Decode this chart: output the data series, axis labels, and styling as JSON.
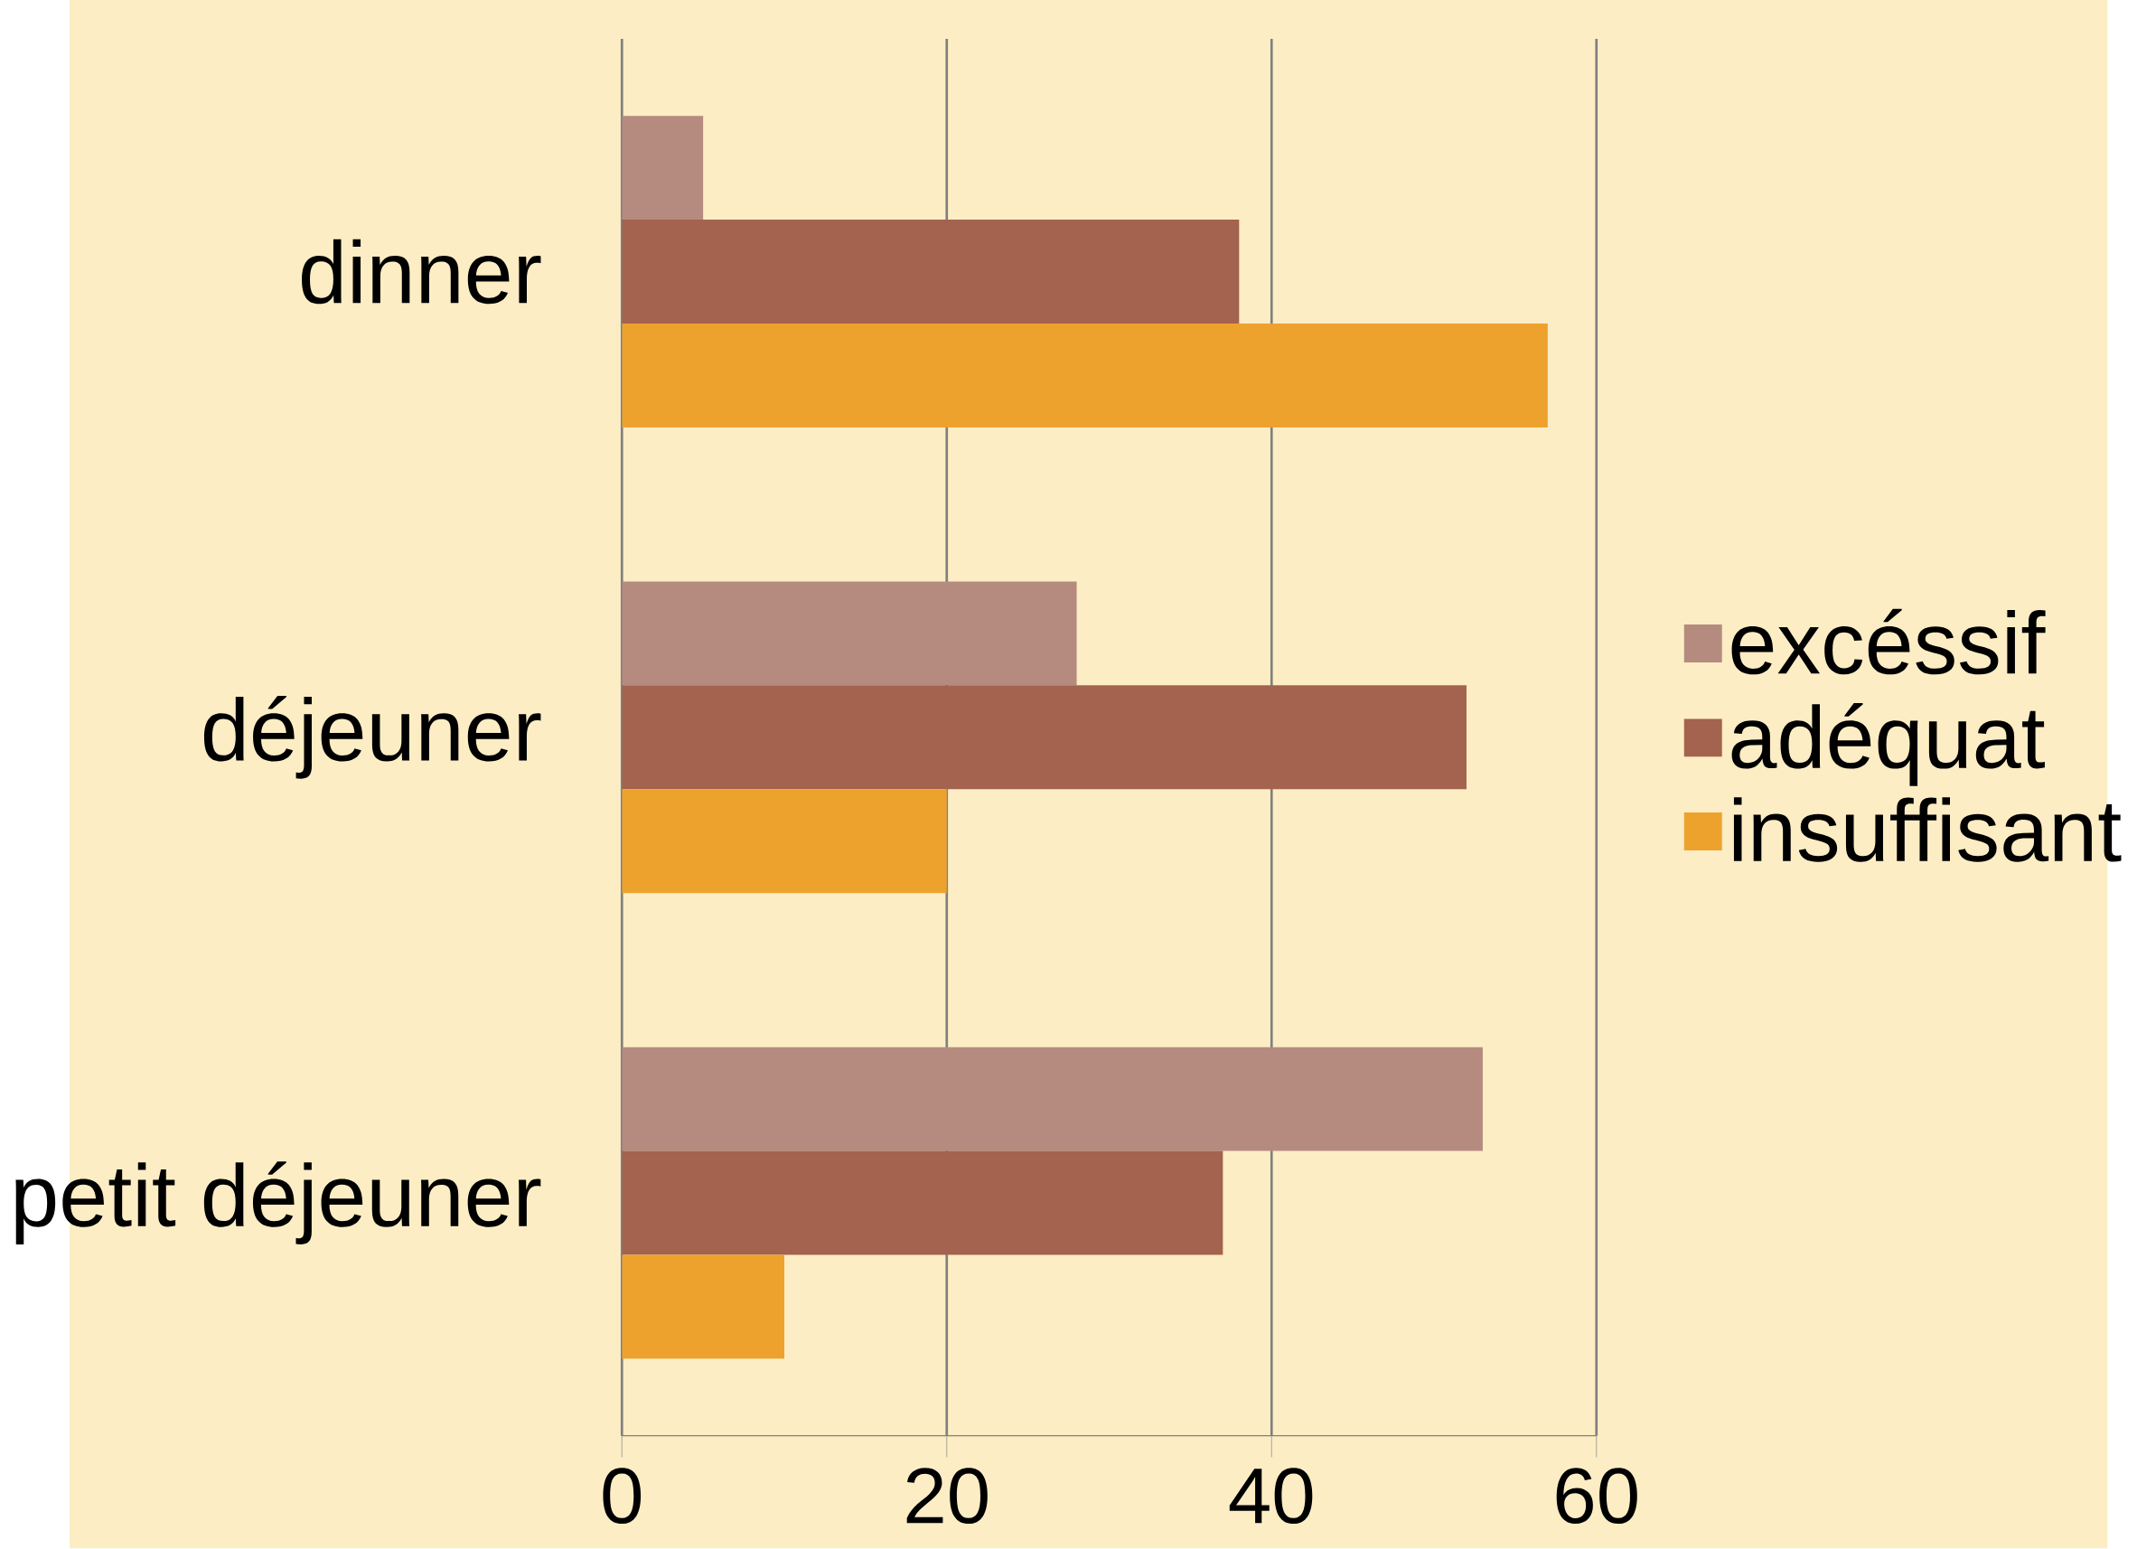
{
  "chart_data": {
    "type": "bar",
    "orientation": "horizontal",
    "categories": [
      "dinner",
      "déjeuner",
      "petit déjeuner"
    ],
    "series": [
      {
        "name": "excéssif",
        "color": "#b58b80",
        "values": [
          5,
          28,
          53
        ]
      },
      {
        "name": "adéquat",
        "color": "#a3634e",
        "values": [
          38,
          52,
          37
        ]
      },
      {
        "name": "insuffisant",
        "color": "#eea22e",
        "values": [
          57,
          20,
          10
        ]
      }
    ],
    "xlim": [
      0,
      60
    ],
    "xticks": [
      0,
      20,
      40,
      60
    ],
    "grid": "x",
    "legend": "right"
  }
}
